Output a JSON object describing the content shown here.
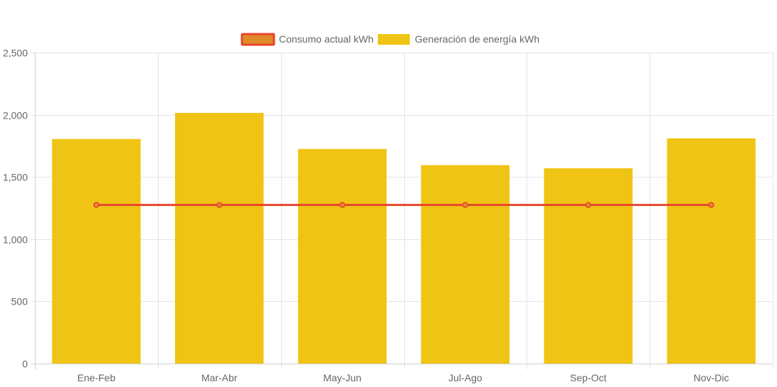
{
  "chart_data": {
    "type": "bar",
    "title": "",
    "xlabel": "",
    "ylabel": "",
    "categories": [
      "Ene-Feb",
      "Mar-Abr",
      "May-Jun",
      "Jul-Ago",
      "Sep-Oct",
      "Nov-Dic"
    ],
    "ylim": [
      0,
      2500
    ],
    "yticks": [
      0,
      500,
      1000,
      1500,
      2000,
      2500
    ],
    "ytick_labels": [
      "0",
      "500",
      "1,000",
      "1,500",
      "2,000",
      "2,500"
    ],
    "grid": true,
    "legend_position": "top-center",
    "series": [
      {
        "name": "Consumo actual kWh",
        "type": "line",
        "color": "#e8452c",
        "fill_color": "#e0892a",
        "values": [
          1275,
          1275,
          1275,
          1275,
          1275,
          1275
        ]
      },
      {
        "name": "Generación de energía kWh",
        "type": "bar",
        "color": "#f0c414",
        "values": [
          1805,
          2015,
          1725,
          1595,
          1570,
          1810
        ]
      }
    ]
  }
}
